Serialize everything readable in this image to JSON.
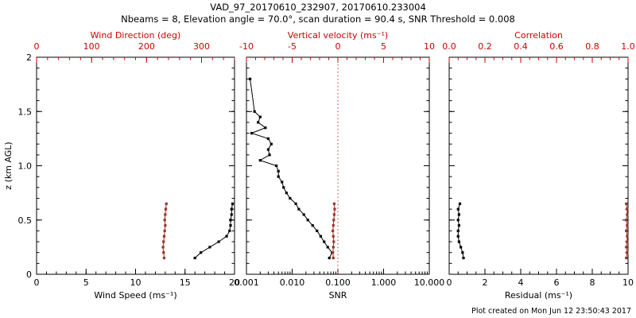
{
  "header": {
    "title": "VAD_97_20170610_232907, 20170610.233004",
    "subtitle": "Nbeams = 8, Elevation angle = 70.0°, scan duration = 90.4 s, SNR Threshold = 0.008"
  },
  "footer": {
    "created": "Plot created on Mon Jun 12 23:50:43 2017"
  },
  "colors": {
    "axis_red": "#cc0000",
    "series_red": "#a03028",
    "black": "#000000"
  },
  "y_axis": {
    "label": "z (km AGL)",
    "range": [
      0,
      2
    ],
    "ticks": [
      0,
      0.5,
      1.0,
      1.5,
      2
    ],
    "tick_labels": [
      "0",
      "0.5",
      "1.0",
      "1.5",
      "2"
    ],
    "minor_step": 0.1
  },
  "chart_data": [
    {
      "type": "line",
      "name": "wind-panel",
      "bottom_axis": {
        "label": "Wind Speed (ms⁻¹)",
        "scale": "linear",
        "range": [
          0,
          20
        ],
        "ticks": [
          0,
          5,
          10,
          15,
          20
        ],
        "tick_labels": [
          "0",
          "5",
          "10",
          "15",
          "20"
        ],
        "minor_div": 5,
        "color": "#000000"
      },
      "top_axis": {
        "label": "Wind Direction (deg)",
        "scale": "linear",
        "range": [
          0,
          360
        ],
        "ticks": [
          0,
          100,
          200,
          300
        ],
        "tick_labels": [
          "0",
          "100",
          "200",
          "300"
        ],
        "minor_div": 5,
        "color": "#cc0000"
      },
      "series": [
        {
          "name": "wind-speed",
          "axis": "bottom",
          "color": "#000000",
          "z": [
            0.15,
            0.2,
            0.25,
            0.3,
            0.35,
            0.4,
            0.45,
            0.5,
            0.55,
            0.6,
            0.65
          ],
          "values": [
            16.0,
            16.6,
            17.5,
            18.4,
            19.2,
            19.5,
            19.6,
            19.6,
            19.7,
            19.7,
            19.8
          ]
        },
        {
          "name": "wind-direction",
          "axis": "top",
          "color": "#a03028",
          "z": [
            0.15,
            0.2,
            0.25,
            0.3,
            0.35,
            0.4,
            0.45,
            0.5,
            0.55,
            0.6,
            0.65
          ],
          "values": [
            232,
            231,
            230,
            231,
            232,
            233,
            234,
            233,
            234,
            235,
            236
          ]
        }
      ]
    },
    {
      "type": "line",
      "name": "snr-panel",
      "bottom_axis": {
        "label": "SNR",
        "scale": "log",
        "range": [
          0.001,
          10.0
        ],
        "ticks": [
          0.001,
          0.01,
          0.1,
          1.0,
          10.0
        ],
        "tick_labels": [
          "0.001",
          "0.010",
          "0.100",
          "1.000",
          "10.000"
        ],
        "minor_div": 0,
        "color": "#000000"
      },
      "top_axis": {
        "label": "Vertical velocity (ms⁻¹)",
        "scale": "linear",
        "range": [
          -10,
          10
        ],
        "ticks": [
          -10,
          -5,
          0,
          5,
          10
        ],
        "tick_labels": [
          "-10",
          "-5",
          "0",
          "5",
          "10"
        ],
        "minor_div": 5,
        "color": "#cc0000"
      },
      "ref_line": {
        "axis": "top",
        "value": 0,
        "style": "dotted",
        "color": "#cc3333"
      },
      "series": [
        {
          "name": "snr",
          "axis": "bottom",
          "color": "#000000",
          "z": [
            0.15,
            0.2,
            0.25,
            0.3,
            0.35,
            0.4,
            0.45,
            0.5,
            0.55,
            0.6,
            0.65,
            0.7,
            0.75,
            0.8,
            0.85,
            0.9,
            0.95,
            1.0,
            1.05,
            1.1,
            1.15,
            1.2,
            1.25,
            1.3,
            1.35,
            1.4,
            1.45,
            1.5,
            1.8
          ],
          "values": [
            0.065,
            0.075,
            0.06,
            0.05,
            0.042,
            0.035,
            0.028,
            0.022,
            0.018,
            0.014,
            0.012,
            0.009,
            0.0075,
            0.0065,
            0.006,
            0.005,
            0.005,
            0.0045,
            0.002,
            0.0032,
            0.003,
            0.0035,
            0.003,
            0.0013,
            0.0026,
            0.0018,
            0.002,
            0.0015,
            0.0012
          ]
        },
        {
          "name": "vertical-velocity",
          "axis": "top",
          "color": "#a03028",
          "z": [
            0.15,
            0.2,
            0.25,
            0.3,
            0.35,
            0.4,
            0.45,
            0.5,
            0.55,
            0.6,
            0.65
          ],
          "values": [
            -0.5,
            -0.55,
            -0.5,
            -0.45,
            -0.5,
            -0.55,
            -0.5,
            -0.45,
            -0.4,
            -0.35,
            -0.4
          ]
        }
      ]
    },
    {
      "type": "line",
      "name": "residual-panel",
      "bottom_axis": {
        "label": "Residual (ms⁻¹)",
        "scale": "linear",
        "range": [
          0,
          10
        ],
        "ticks": [
          0,
          2,
          4,
          6,
          8,
          10
        ],
        "tick_labels": [
          "0",
          "2",
          "4",
          "6",
          "8",
          "10"
        ],
        "minor_div": 4,
        "color": "#000000"
      },
      "top_axis": {
        "label": "Correlation",
        "scale": "linear",
        "range": [
          0,
          1
        ],
        "ticks": [
          0.0,
          0.2,
          0.4,
          0.6,
          0.8,
          1.0
        ],
        "tick_labels": [
          "0.0",
          "0.2",
          "0.4",
          "0.6",
          "0.8",
          "1.0"
        ],
        "minor_div": 4,
        "color": "#cc0000"
      },
      "series": [
        {
          "name": "residual",
          "axis": "bottom",
          "color": "#000000",
          "z": [
            0.15,
            0.2,
            0.25,
            0.3,
            0.35,
            0.4,
            0.45,
            0.5,
            0.55,
            0.6,
            0.65
          ],
          "values": [
            0.8,
            0.75,
            0.65,
            0.55,
            0.5,
            0.5,
            0.55,
            0.5,
            0.55,
            0.5,
            0.6
          ]
        },
        {
          "name": "correlation",
          "axis": "top",
          "color": "#a03028",
          "z": [
            0.15,
            0.2,
            0.25,
            0.3,
            0.35,
            0.4,
            0.45,
            0.5,
            0.55,
            0.6,
            0.65
          ],
          "values": [
            0.99,
            0.995,
            0.99,
            0.995,
            0.995,
            0.99,
            0.995,
            0.99,
            0.995,
            0.995,
            0.99
          ]
        }
      ]
    }
  ]
}
